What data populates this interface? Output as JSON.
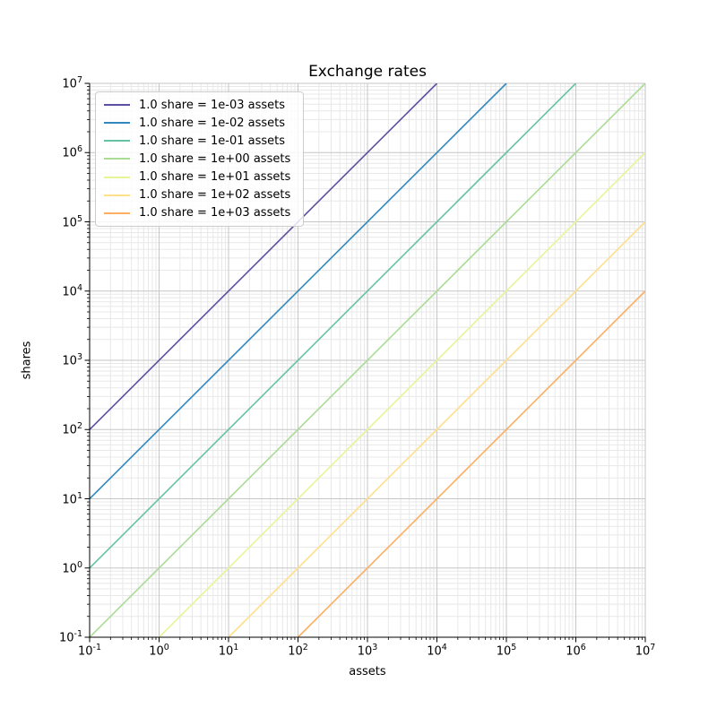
{
  "figure": {
    "background": "#ffffff",
    "spine_color": "#000000",
    "tick_color": "#000000",
    "grid_major_color": "#c6c6c6",
    "grid_minor_color": "#e8e8e8",
    "tick_base": "10"
  },
  "axes": {
    "x_tick_exponents": [
      -1,
      0,
      1,
      2,
      3,
      4,
      5,
      6,
      7
    ],
    "y_tick_exponents": [
      -1,
      0,
      1,
      2,
      3,
      4,
      5,
      6,
      7
    ]
  },
  "chart_data": {
    "type": "line",
    "title": "Exchange rates",
    "xlabel": "assets",
    "ylabel": "shares",
    "xscale": "log",
    "yscale": "log",
    "xlim": [
      0.1,
      10000000
    ],
    "ylim": [
      0.1,
      10000000
    ],
    "grid": "major and minor, light gray",
    "legend_position": "upper left",
    "series": [
      {
        "name": "1.0 share = 1e-03 assets",
        "assets_per_share": 0.001,
        "color": "#5e4fa2",
        "points": [
          [
            0.1,
            100
          ],
          [
            10000,
            10000000
          ]
        ]
      },
      {
        "name": "1.0 share = 1e-02 assets",
        "assets_per_share": 0.01,
        "color": "#3288bd",
        "points": [
          [
            0.1,
            10
          ],
          [
            100000,
            10000000
          ]
        ]
      },
      {
        "name": "1.0 share = 1e-01 assets",
        "assets_per_share": 0.1,
        "color": "#66c2a5",
        "points": [
          [
            0.1,
            1
          ],
          [
            1000000,
            10000000
          ]
        ]
      },
      {
        "name": "1.0 share = 1e+00 assets",
        "assets_per_share": 1,
        "color": "#a9dc94",
        "points": [
          [
            0.1,
            0.1
          ],
          [
            10000000,
            10000000
          ]
        ]
      },
      {
        "name": "1.0 share = 1e+01 assets",
        "assets_per_share": 10,
        "color": "#e6f598",
        "points": [
          [
            1,
            0.1
          ],
          [
            10000000,
            1000000
          ]
        ]
      },
      {
        "name": "1.0 share = 1e+02 assets",
        "assets_per_share": 100,
        "color": "#fee08b",
        "points": [
          [
            10,
            0.1
          ],
          [
            10000000,
            100000
          ]
        ]
      },
      {
        "name": "1.0 share = 1e+03 assets",
        "assets_per_share": 1000,
        "color": "#fdae61",
        "points": [
          [
            100,
            0.1
          ],
          [
            10000000,
            10000
          ]
        ]
      }
    ]
  }
}
